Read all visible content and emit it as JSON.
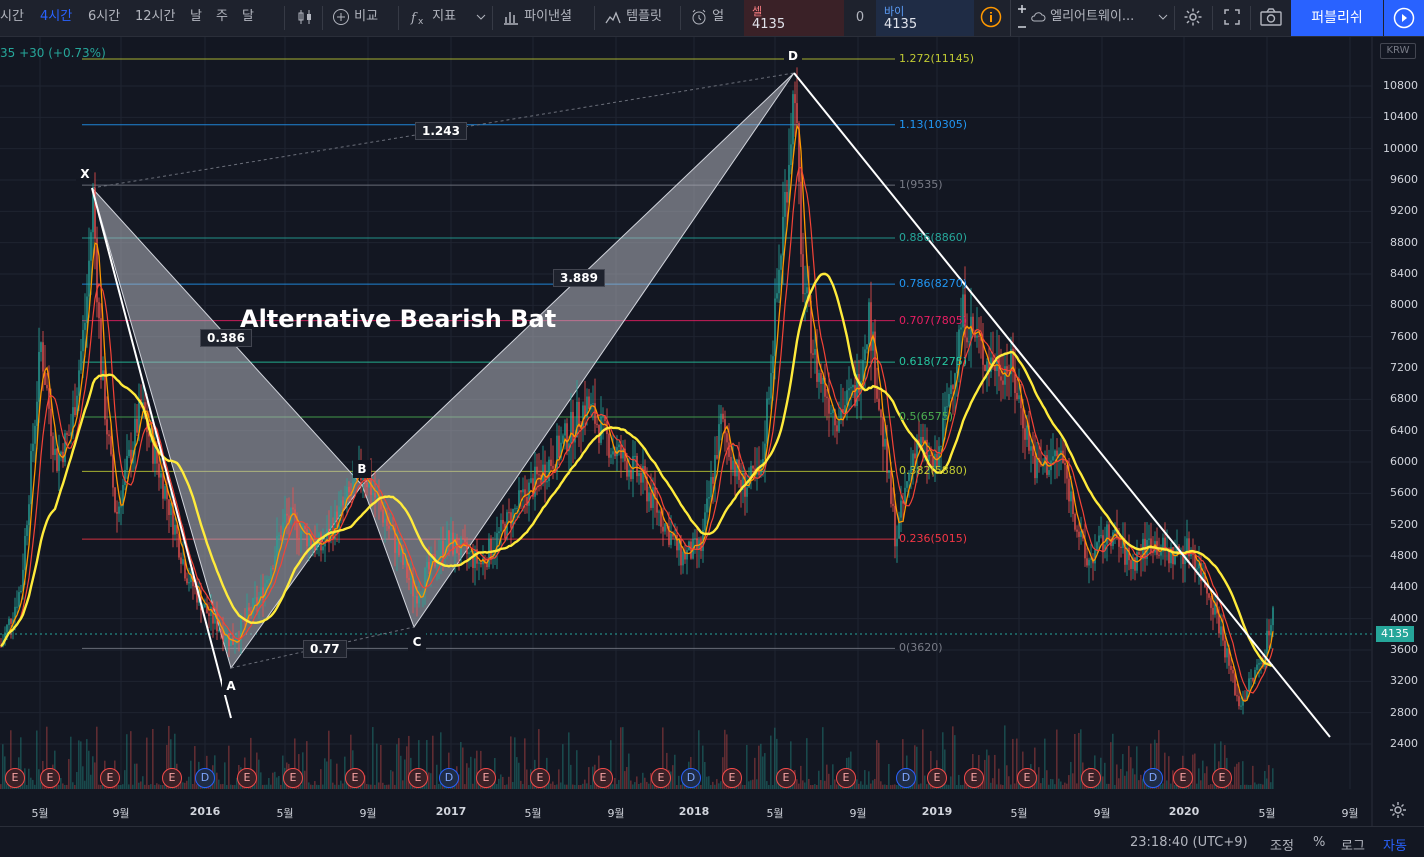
{
  "toolbar": {
    "intervals": [
      {
        "label": "시간",
        "active": false
      },
      {
        "label": "4시간",
        "active": true
      },
      {
        "label": "6시간",
        "active": false
      },
      {
        "label": "12시간",
        "active": false
      },
      {
        "label": "날",
        "active": false
      },
      {
        "label": "주",
        "active": false
      },
      {
        "label": "달",
        "active": false
      }
    ],
    "compare_label": "비교",
    "indicators_label": "지표",
    "financials_label": "파이낸셜",
    "templates_label": "템플릿",
    "alert_label": "얼",
    "layout_name": "엘리어트웨이...",
    "publish_label": "퍼블리쉬"
  },
  "trade": {
    "sell_label": "셀",
    "sell_price": "4135",
    "quantity": "0",
    "buy_label": "바이",
    "buy_price": "4135"
  },
  "chart": {
    "ticker_change": "35 +30 (+0.73%)",
    "currency": "KRW",
    "last_price": "4135",
    "pattern_title": "Alternative Bearish Bat",
    "price_axis": [
      "10800",
      "10400",
      "10000",
      "9600",
      "9200",
      "8800",
      "8400",
      "8000",
      "7600",
      "7200",
      "6800",
      "6400",
      "6000",
      "5600",
      "5200",
      "4800",
      "4400",
      "4000",
      "3600",
      "3200",
      "2800",
      "2400"
    ],
    "time_axis": [
      {
        "label": "5월",
        "year": false
      },
      {
        "label": "9월",
        "year": false
      },
      {
        "label": "2016",
        "year": true
      },
      {
        "label": "5월",
        "year": false
      },
      {
        "label": "9월",
        "year": false
      },
      {
        "label": "2017",
        "year": true
      },
      {
        "label": "5월",
        "year": false
      },
      {
        "label": "9월",
        "year": false
      },
      {
        "label": "2018",
        "year": true
      },
      {
        "label": "5월",
        "year": false
      },
      {
        "label": "9월",
        "year": false
      },
      {
        "label": "2019",
        "year": true
      },
      {
        "label": "5월",
        "year": false
      },
      {
        "label": "9월",
        "year": false
      },
      {
        "label": "2020",
        "year": true
      },
      {
        "label": "5월",
        "year": false
      },
      {
        "label": "9월",
        "year": false
      }
    ],
    "fib_levels": [
      {
        "label": "1.272(11145)",
        "color": "#c0ca33",
        "price": 11145
      },
      {
        "label": "1.13(10305)",
        "color": "#2196f3",
        "price": 10305
      },
      {
        "label": "1(9535)",
        "color": "#787b86",
        "price": 9535
      },
      {
        "label": "0.886(8860)",
        "color": "#26a69a",
        "price": 8860
      },
      {
        "label": "0.786(8270)",
        "color": "#2196f3",
        "price": 8270
      },
      {
        "label": "0.707(7805)",
        "color": "#e91e63",
        "price": 7805
      },
      {
        "label": "0.618(7275)",
        "color": "#26c6a0",
        "price": 7275
      },
      {
        "label": "0.5(6575)",
        "color": "#4caf50",
        "price": 6575
      },
      {
        "label": "0.382(5880)",
        "color": "#c0ca33",
        "price": 5880
      },
      {
        "label": "0.236(5015)",
        "color": "#f23645",
        "price": 5015
      },
      {
        "label": "0(3620)",
        "color": "#787b86",
        "price": 3620
      }
    ],
    "points": {
      "x": "X",
      "a": "A",
      "b": "B",
      "c": "C",
      "d": "D"
    },
    "ratios": {
      "xb": "0.386",
      "ac": "0.77",
      "bd": "3.889",
      "xd": "1.243"
    },
    "events": [
      "E",
      "E",
      "E",
      "E",
      "D",
      "E",
      "E",
      "E",
      "E",
      "D",
      "E",
      "E",
      "E",
      "E",
      "D",
      "E",
      "E",
      "E",
      "D",
      "E",
      "E",
      "E",
      "E",
      "D",
      "E",
      "E"
    ]
  },
  "status": {
    "clock": "23:18:40 (UTC+9)",
    "adjust_label": "조정",
    "percent_label": "%",
    "log_label": "로그",
    "auto_label": "자동"
  },
  "colors": {
    "accent": "#2962ff",
    "up": "#26a69a",
    "down": "#ef5350",
    "ma_yellow": "#ffeb3b"
  }
}
